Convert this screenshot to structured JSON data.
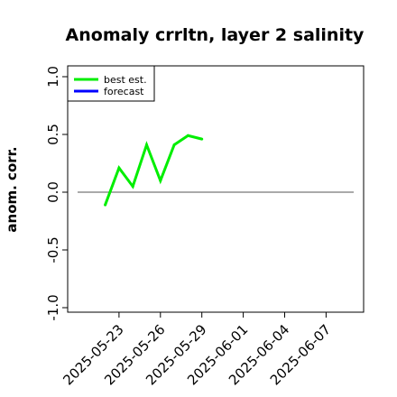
{
  "chart_data": {
    "type": "line",
    "title": "Anomaly crrltn, layer 2 salinity",
    "xlabel": "",
    "ylabel": "anom. corr.",
    "ylim": [
      -1.0,
      1.0
    ],
    "yticks": [
      -1.0,
      -0.5,
      0.0,
      0.5,
      1.0
    ],
    "ytick_labels": [
      "-1.0",
      "-0.5",
      "0.0",
      "0.5",
      "1.0"
    ],
    "xlim": [
      "2025-05-20",
      "2025-06-09"
    ],
    "xticks": [
      "2025-05-23",
      "2025-05-26",
      "2025-05-29",
      "2025-06-01",
      "2025-06-04",
      "2025-06-07"
    ],
    "xtick_labels": [
      "2025-05-23",
      "2025-05-26",
      "2025-05-29",
      "2025-06-01",
      "2025-06-04",
      "2025-06-07"
    ],
    "highlighted_xtick": "2025-05-29",
    "highlight_color": "#228b22",
    "reference_line": {
      "y": 0.0,
      "x_start": "2025-05-20",
      "x_end": "2025-06-09",
      "color": "#555555"
    },
    "legend_position": "top-left",
    "grid": false,
    "series": [
      {
        "name": "best est.",
        "color": "#00ee00",
        "x": [
          "2025-05-22",
          "2025-05-23",
          "2025-05-24",
          "2025-05-25",
          "2025-05-26",
          "2025-05-27",
          "2025-05-28",
          "2025-05-29"
        ],
        "values": [
          -0.11,
          0.21,
          0.05,
          0.41,
          0.1,
          0.41,
          0.49,
          0.46
        ]
      },
      {
        "name": "forecast",
        "color": "#0000ff",
        "x": [],
        "values": []
      }
    ]
  }
}
